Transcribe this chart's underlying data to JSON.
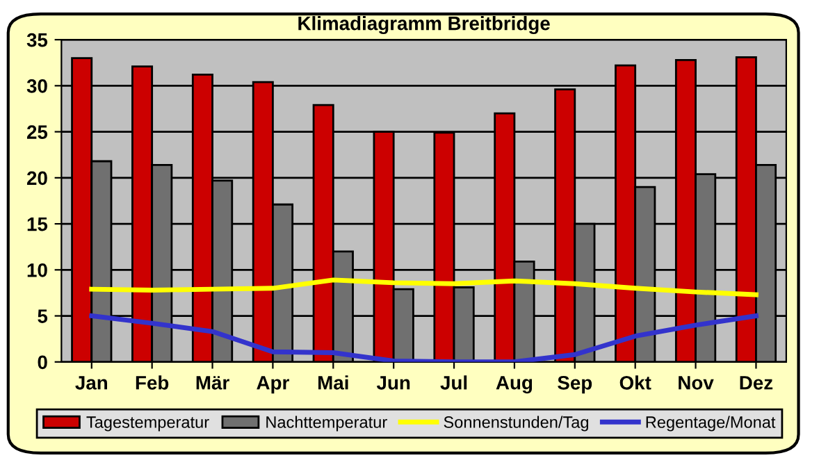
{
  "chart_data": {
    "type": "bar",
    "title": "Klimadiagramm Breitbridge",
    "categories": [
      "Jan",
      "Feb",
      "Mär",
      "Apr",
      "Mai",
      "Jun",
      "Jul",
      "Aug",
      "Sep",
      "Okt",
      "Nov",
      "Dez"
    ],
    "series": [
      {
        "name": "Tagestemperatur",
        "color": "#cc0000",
        "values": [
          33,
          32.1,
          31.2,
          30.4,
          27.9,
          25,
          24.9,
          27,
          29.6,
          32.2,
          32.8,
          33.1
        ]
      },
      {
        "name": "Nachttemperatur",
        "color": "#707070",
        "values": [
          21.8,
          21.4,
          19.7,
          17.1,
          12,
          7.9,
          8.1,
          10.9,
          15,
          19,
          20.4,
          21.4
        ]
      },
      {
        "name": "Sonnenstunden/Tag",
        "type": "line",
        "color": "#ffff00",
        "values": [
          7.9,
          7.8,
          7.9,
          8,
          8.9,
          8.6,
          8.5,
          8.8,
          8.5,
          8,
          7.6,
          7.3
        ]
      },
      {
        "name": "Regentage/Monat",
        "type": "line",
        "color": "#3333cc",
        "values": [
          5,
          4.2,
          3.3,
          1.1,
          1,
          0.1,
          0,
          0,
          0.8,
          2.8,
          4,
          5
        ]
      }
    ],
    "ylim": [
      0,
      35
    ],
    "yticks": [
      0,
      5,
      10,
      15,
      20,
      25,
      30,
      35
    ],
    "grid": "y",
    "legend": "bottom",
    "marker": "none"
  }
}
